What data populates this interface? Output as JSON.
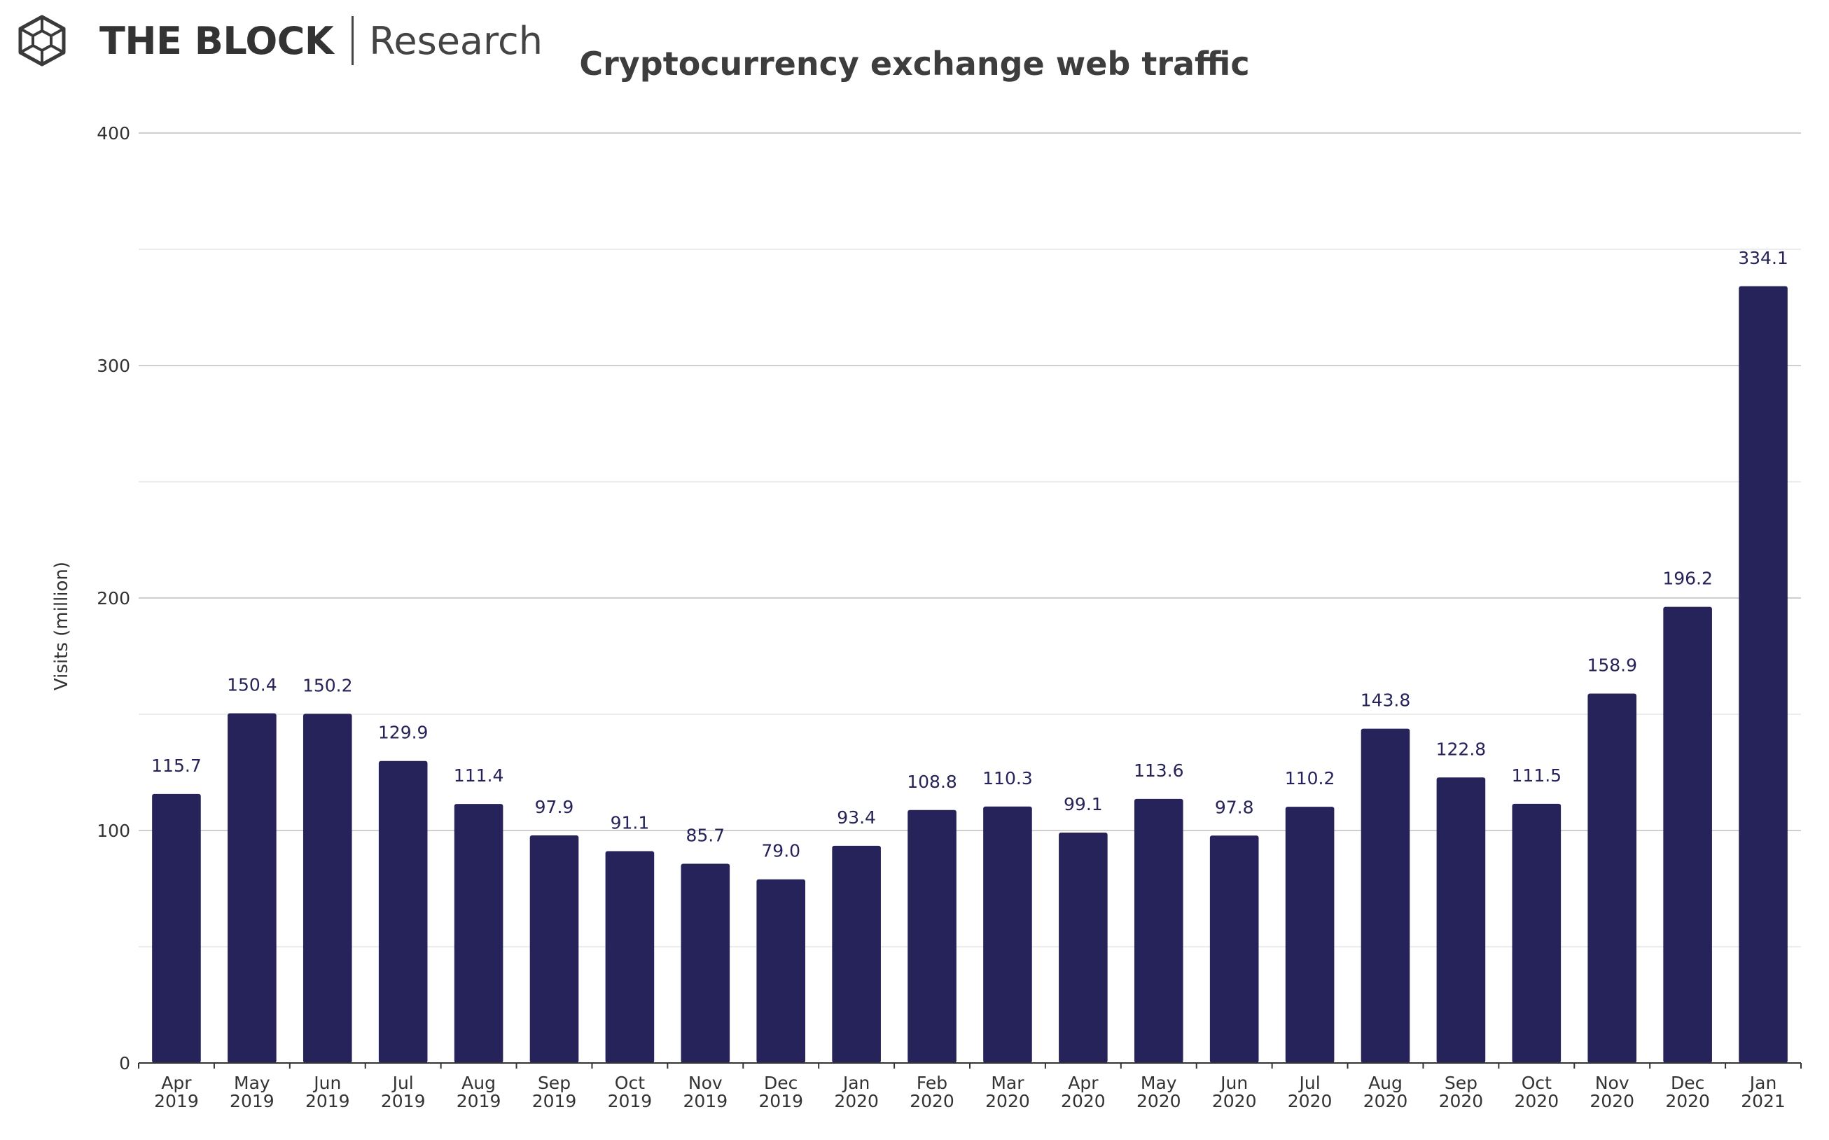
{
  "branding": {
    "name": "THE BLOCK",
    "suffix": "Research"
  },
  "colors": {
    "bar": "#26235a",
    "grid": "#d9d9d9",
    "axis": "#333333",
    "text": "#333333"
  },
  "chart_data": {
    "type": "bar",
    "title": "Cryptocurrency exchange web traffic",
    "xlabel": "",
    "ylabel": "Visits (million)",
    "ylim": [
      0,
      400
    ],
    "yticks": [
      0,
      100,
      200,
      300,
      400
    ],
    "grid": true,
    "categories": [
      [
        "Apr",
        "2019"
      ],
      [
        "May",
        "2019"
      ],
      [
        "Jun",
        "2019"
      ],
      [
        "Jul",
        "2019"
      ],
      [
        "Aug",
        "2019"
      ],
      [
        "Sep",
        "2019"
      ],
      [
        "Oct",
        "2019"
      ],
      [
        "Nov",
        "2019"
      ],
      [
        "Dec",
        "2019"
      ],
      [
        "Jan",
        "2020"
      ],
      [
        "Feb",
        "2020"
      ],
      [
        "Mar",
        "2020"
      ],
      [
        "Apr",
        "2020"
      ],
      [
        "May",
        "2020"
      ],
      [
        "Jun",
        "2020"
      ],
      [
        "Jul",
        "2020"
      ],
      [
        "Aug",
        "2020"
      ],
      [
        "Sep",
        "2020"
      ],
      [
        "Oct",
        "2020"
      ],
      [
        "Nov",
        "2020"
      ],
      [
        "Dec",
        "2020"
      ],
      [
        "Jan",
        "2021"
      ]
    ],
    "values": [
      115.7,
      150.4,
      150.2,
      129.9,
      111.4,
      97.9,
      91.1,
      85.7,
      79.0,
      93.4,
      108.8,
      110.3,
      99.1,
      113.6,
      97.8,
      110.2,
      143.8,
      122.8,
      111.5,
      158.9,
      196.2,
      334.1
    ],
    "value_labels": [
      "115.7",
      "150.4",
      "150.2",
      "129.9",
      "111.4",
      "97.9",
      "91.1",
      "85.7",
      "79.0",
      "93.4",
      "108.8",
      "110.3",
      "99.1",
      "113.6",
      "97.8",
      "110.2",
      "143.8",
      "122.8",
      "111.5",
      "158.9",
      "196.2",
      "334.1"
    ]
  }
}
